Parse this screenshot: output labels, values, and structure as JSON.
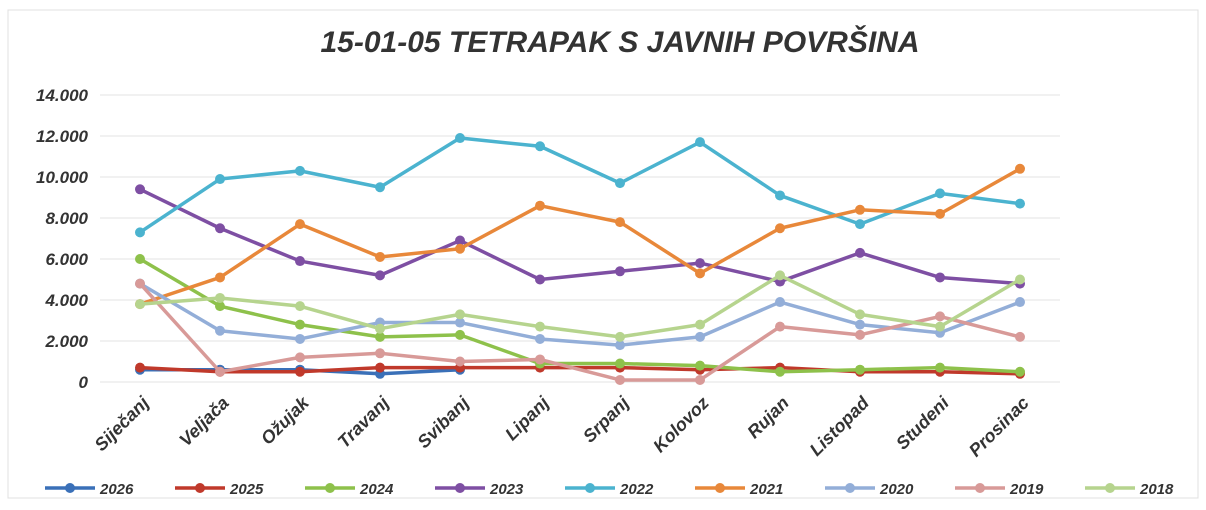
{
  "chart_data": {
    "type": "line",
    "title": "15-01-05 TETRAPAK S JAVNIH POVRŠINA",
    "categories": [
      "Siječanj",
      "Veljača",
      "Ožujak",
      "Travanj",
      "Svibanj",
      "Lipanj",
      "Srpanj",
      "Kolovoz",
      "Rujan",
      "Listopad",
      "Studeni",
      "Prosinac"
    ],
    "series": [
      {
        "name": "2026",
        "color": "#3a70b8",
        "values": [
          600,
          600,
          600,
          400,
          600,
          null,
          null,
          null,
          null,
          null,
          null,
          null
        ]
      },
      {
        "name": "2025",
        "color": "#c0392b",
        "values": [
          700,
          500,
          500,
          700,
          700,
          700,
          700,
          600,
          700,
          500,
          500,
          400
        ]
      },
      {
        "name": "2024",
        "color": "#8ec14b",
        "values": [
          6000,
          3700,
          2800,
          2200,
          2300,
          900,
          900,
          800,
          500,
          600,
          700,
          500
        ]
      },
      {
        "name": "2023",
        "color": "#7e4fa3",
        "values": [
          9400,
          7500,
          5900,
          5200,
          6900,
          5000,
          5400,
          5800,
          4900,
          6300,
          5100,
          4800
        ]
      },
      {
        "name": "2022",
        "color": "#4bb3cf",
        "values": [
          7300,
          9900,
          10300,
          9500,
          11900,
          11500,
          9700,
          11700,
          9100,
          7700,
          9200,
          8700
        ]
      },
      {
        "name": "2021",
        "color": "#e8883a",
        "values": [
          3800,
          5100,
          7700,
          6100,
          6500,
          8600,
          7800,
          5300,
          7500,
          8400,
          8200,
          10400
        ]
      },
      {
        "name": "2020",
        "color": "#93aed8",
        "values": [
          4800,
          2500,
          2100,
          2900,
          2900,
          2100,
          1800,
          2200,
          3900,
          2800,
          2400,
          3900
        ]
      },
      {
        "name": "2019",
        "color": "#d89a98",
        "values": [
          4800,
          500,
          1200,
          1400,
          1000,
          1100,
          100,
          100,
          2700,
          2300,
          3200,
          2200
        ]
      },
      {
        "name": "2018",
        "color": "#b6d48e",
        "values": [
          3800,
          4100,
          3700,
          2600,
          3300,
          2700,
          2200,
          2800,
          5200,
          3300,
          2700,
          5000
        ]
      }
    ],
    "ylim": [
      0,
      14000
    ],
    "yticks": [
      0,
      {
        "value": 2000,
        "label": "2.000"
      },
      {
        "value": 4000,
        "label": "4.000"
      },
      {
        "value": 6000,
        "label": "6.000"
      },
      {
        "value": 8000,
        "label": "8.000"
      },
      {
        "value": 10000,
        "label": "10.000"
      },
      {
        "value": 12000,
        "label": "12.000"
      },
      {
        "value": 14000,
        "label": "14.000"
      }
    ],
    "grid": true,
    "legend": "bottom"
  }
}
